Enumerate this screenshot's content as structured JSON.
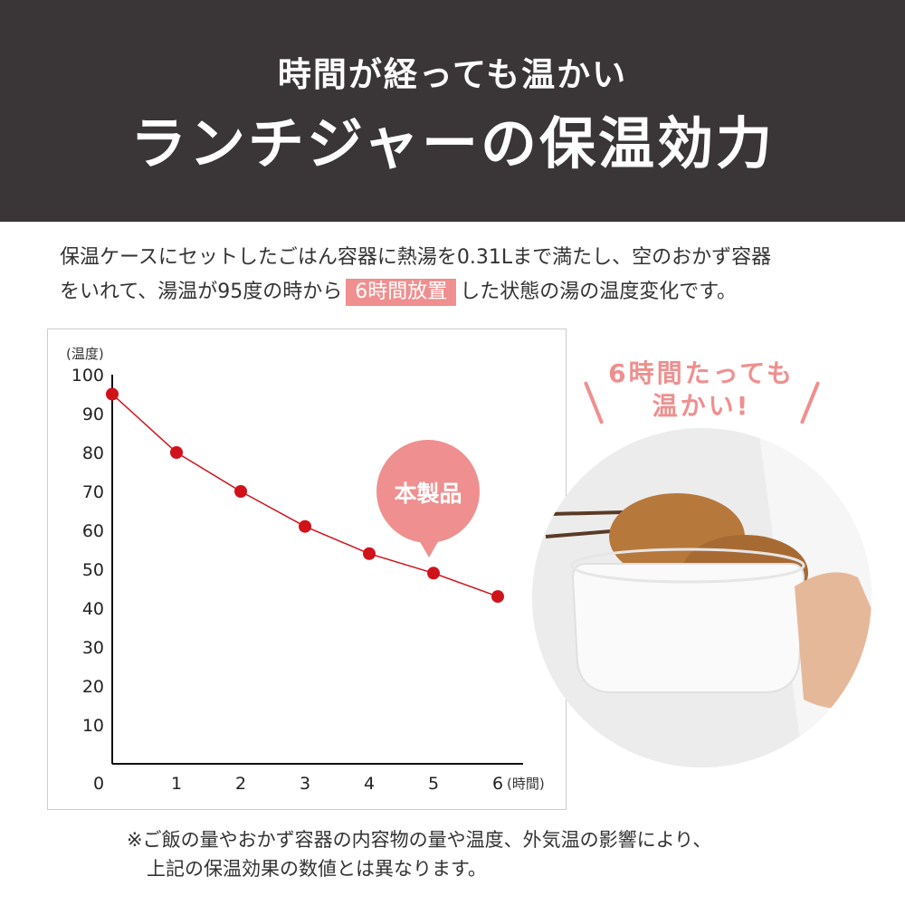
{
  "header": {
    "subtitle": "時間が経っても温かい",
    "title": "ランチジャーの保温効力"
  },
  "description": {
    "line1": "保温ケースにセットしたごはん容器に熱湯を0.31Lまで満たし、空のおかず容器",
    "line2_before": "をいれて、湯温が95度の時から",
    "line2_highlight": "6時間放置",
    "line2_after": "した状態の湯の温度変化です。"
  },
  "callout": {
    "line1": "6時間たっても",
    "line2": "温かい!"
  },
  "note": {
    "line1": "※ご飯の量やおかず容器の内容物の量や温度、外気温の影響により、",
    "line2": "上記の保温効果の数値とは異なります。"
  },
  "colors": {
    "header_bg": "#3a3536",
    "accent": "#ef8f8f",
    "line": "#d0121b"
  },
  "chart_data": {
    "type": "line",
    "ylabel": "(温度)",
    "xlabel": "(時間)",
    "x_ticks": [
      0,
      1,
      2,
      3,
      4,
      5,
      6
    ],
    "y_ticks": [
      10,
      20,
      30,
      40,
      50,
      60,
      70,
      80,
      90,
      100
    ],
    "xlim": [
      0,
      6
    ],
    "ylim": [
      0,
      100
    ],
    "x": [
      0,
      1,
      2,
      3,
      4,
      5,
      6
    ],
    "values": [
      95,
      80,
      70,
      61,
      54,
      49,
      43
    ],
    "annotation": "本製品",
    "grid": false
  }
}
